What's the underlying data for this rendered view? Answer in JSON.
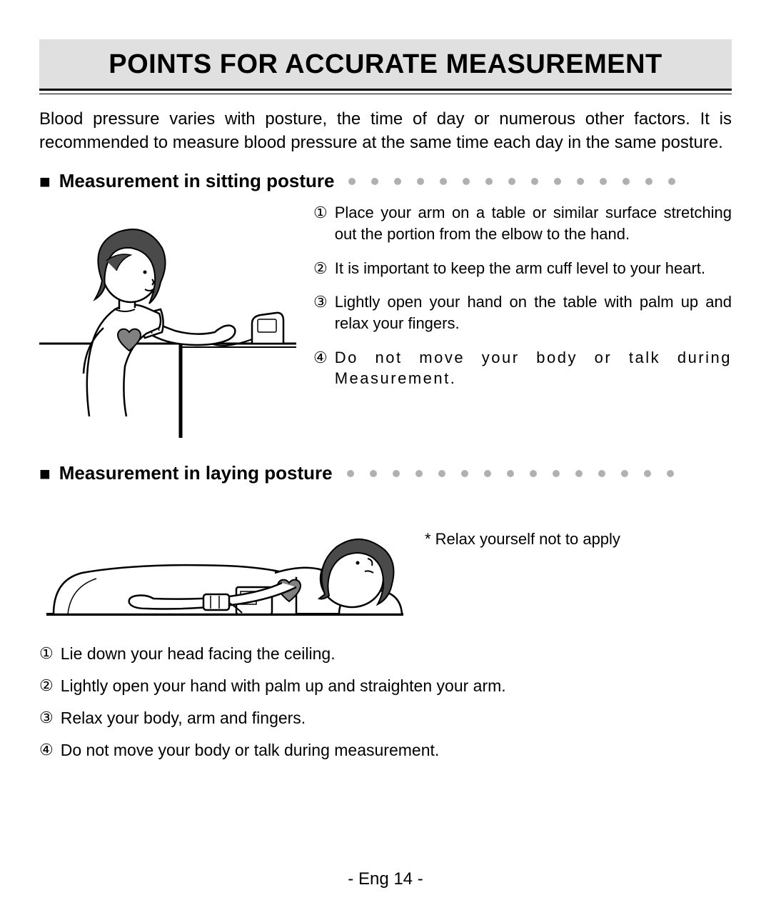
{
  "title": "POINTS FOR ACCURATE MEASUREMENT",
  "intro": "Blood pressure varies with posture, the time of day or numerous other factors. It is recommended to measure blood pressure at the same time each day in the same posture.",
  "section_sitting": {
    "heading": "Measurement in sitting posture",
    "steps": [
      "Place your arm on a table or similar surface stretching out the portion from the elbow to the hand.",
      "It is important to keep the arm cuff level to your heart.",
      "Lightly open your hand on the table with palm up and relax your fingers.",
      "Do not move your body or talk during Measurement."
    ]
  },
  "section_laying": {
    "heading": "Measurement in laying posture",
    "note": "* Relax yourself not to apply",
    "steps": [
      "Lie down your head facing the ceiling.",
      "Lightly open your hand with palm up and straighten your arm.",
      "Relax your body, arm and fingers.",
      "Do not move your body or talk during measurement."
    ]
  },
  "circled_nums": [
    "①",
    "②",
    "③",
    "④"
  ],
  "footer": "- Eng 14 -",
  "colors": {
    "title_bg": "#e0e0e0",
    "dot": "#b0b0b0",
    "heart_fill": "#808080",
    "hair_fill": "#4a4a4a",
    "stroke": "#000000"
  },
  "dot_count": 15
}
